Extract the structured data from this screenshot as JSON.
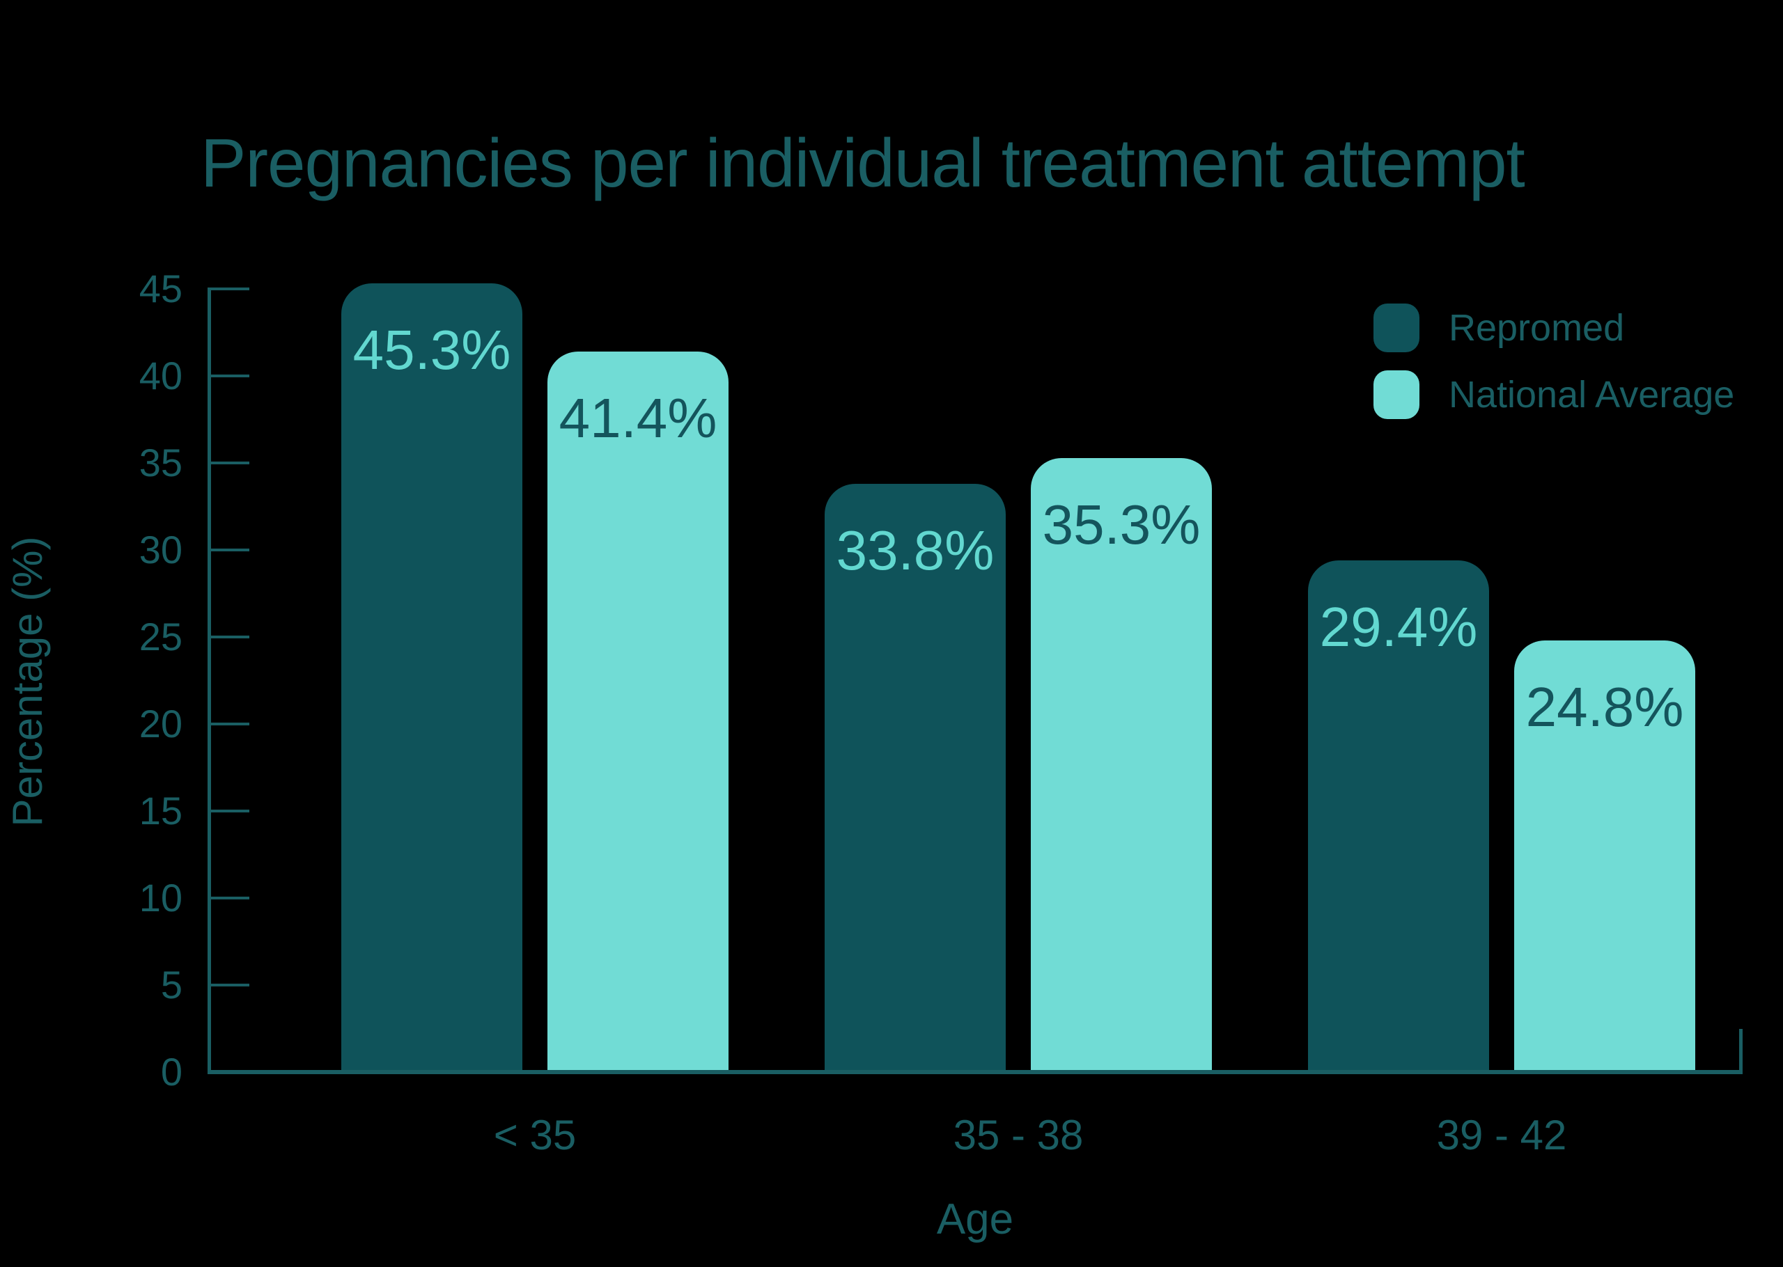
{
  "colors": {
    "background": "#000000",
    "ink": "#1A5E63",
    "series_dark": "#0F535A",
    "series_light": "#71DCD5",
    "value_label_on_dark": "#62D8D0",
    "value_label_on_light": "#14545C"
  },
  "chart_data": {
    "type": "bar",
    "title": "Pregnancies per individual treatment attempt",
    "xlabel": "Age",
    "ylabel": "Percentage (%)",
    "categories": [
      "< 35",
      "35 - 38",
      "39 - 42"
    ],
    "series": [
      {
        "name": "Repromed",
        "color": "#0F535A",
        "label_color": "#62D8D0",
        "values": [
          45.3,
          33.8,
          29.4
        ],
        "labels": [
          "45.3%",
          "33.8%",
          "29.4%"
        ]
      },
      {
        "name": "National Average",
        "color": "#71DCD5",
        "label_color": "#14545C",
        "values": [
          41.4,
          35.3,
          24.8
        ],
        "labels": [
          "41.4%",
          "35.3%",
          "24.8%"
        ]
      }
    ],
    "ylim": [
      0,
      45
    ],
    "ytick_step": 5,
    "yticks": [
      "45",
      "40",
      "35",
      "30",
      "25",
      "20",
      "15",
      "10",
      "5",
      "0"
    ],
    "grid": false,
    "legend_position": "top-right"
  }
}
